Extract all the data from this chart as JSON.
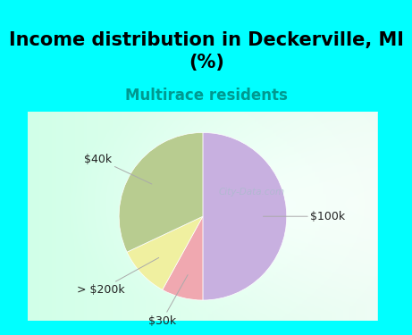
{
  "title": "Income distribution in Deckerville, MI\n(%)",
  "subtitle": "Multirace residents",
  "wedge_labels": [
    "$100k",
    "$30k",
    "> $200k",
    "$40k"
  ],
  "wedge_sizes": [
    50,
    8,
    10,
    32
  ],
  "wedge_colors": [
    "#c8b0e0",
    "#f0a8b0",
    "#f0f0a0",
    "#b8cc90"
  ],
  "startangle": 90,
  "counterclock": false,
  "title_fontsize": 15,
  "subtitle_fontsize": 12,
  "subtitle_color": "#009990",
  "bg_cyan": "#00ffff",
  "chart_bg_left": "#c0e8d8",
  "chart_bg_right": "#e8f4f0",
  "watermark": "City-Data.com",
  "watermark_color": "#aabbcc",
  "label_fontsize": 9,
  "label_color": "#222222",
  "leader_color": "#aaaaaa"
}
